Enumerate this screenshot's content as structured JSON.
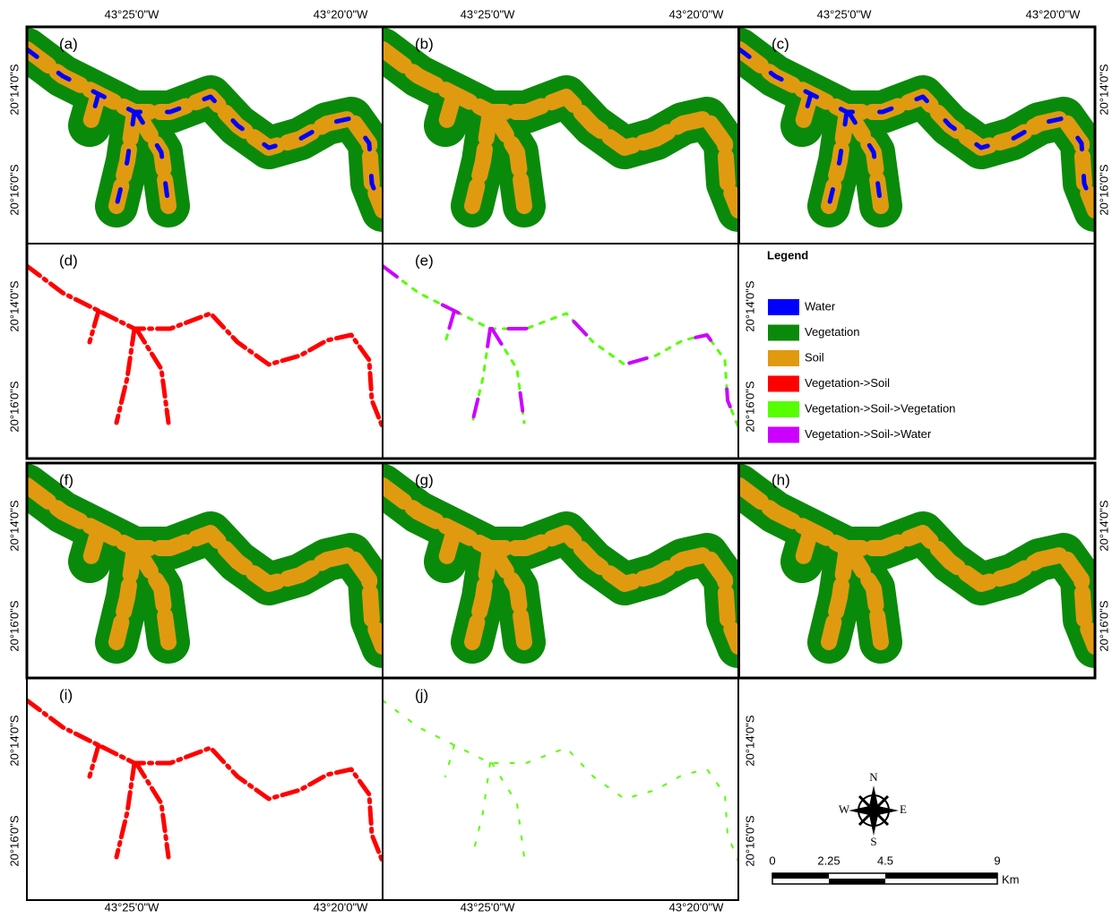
{
  "longitude_labels": [
    "43°25'0\"W",
    "43°20'0\"W"
  ],
  "latitude_labels": [
    "20°14'0\"S",
    "20°16'0\"S"
  ],
  "panels": [
    "(a)",
    "(b)",
    "(c)",
    "(d)",
    "(e)",
    "(f)",
    "(g)",
    "(h)",
    "(i)",
    "(j)"
  ],
  "legend": {
    "title": "Legend",
    "items": [
      {
        "label": "Water",
        "color": "#0000ff"
      },
      {
        "label": "Vegetation",
        "color": "#0a8a0a"
      },
      {
        "label": "Soil",
        "color": "#e09a10"
      },
      {
        "label": "Vegetation->Soil",
        "color": "#ff0000"
      },
      {
        "label": "Vegetation->Soil->Vegetation",
        "color": "#55ff00"
      },
      {
        "label": "Vegetation->Soil->Water",
        "color": "#cc00ff"
      }
    ]
  },
  "compass": {
    "n": "N",
    "s": "S",
    "e": "E",
    "w": "W"
  },
  "scale_bar": {
    "labels": [
      "0",
      "2.25",
      "4.5",
      "9"
    ],
    "unit": "Km"
  }
}
